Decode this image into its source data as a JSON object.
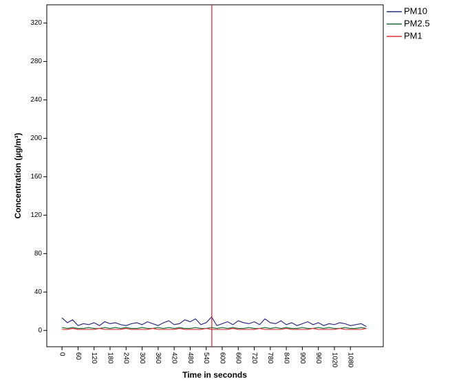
{
  "chart_data": {
    "type": "line",
    "xlabel": "Time in seconds",
    "ylabel": "Concentration (µg/m³)",
    "x": [
      0,
      20,
      40,
      60,
      80,
      100,
      120,
      140,
      160,
      180,
      200,
      220,
      240,
      260,
      280,
      300,
      320,
      340,
      360,
      380,
      400,
      420,
      440,
      460,
      480,
      500,
      520,
      540,
      560,
      580,
      600,
      620,
      640,
      660,
      680,
      700,
      720,
      740,
      760,
      780,
      800,
      820,
      840,
      860,
      880,
      900,
      920,
      940,
      960,
      980,
      1000,
      1020,
      1040,
      1060,
      1080,
      1100,
      1120,
      1140
    ],
    "series": [
      {
        "name": "PM10",
        "color": "#2b2f7f",
        "values": [
          13,
          8,
          11,
          5,
          7,
          6,
          8,
          5,
          9,
          7,
          8,
          6,
          5,
          7,
          8,
          6,
          9,
          7,
          5,
          8,
          10,
          6,
          7,
          11,
          9,
          12,
          6,
          8,
          14,
          5,
          7,
          9,
          6,
          10,
          8,
          7,
          9,
          6,
          12,
          8,
          7,
          10,
          6,
          8,
          5,
          7,
          9,
          6,
          8,
          5,
          7,
          6,
          8,
          7,
          5,
          6,
          7,
          4
        ]
      },
      {
        "name": "PM2.5",
        "color": "#1f6b3a",
        "values": [
          3,
          2,
          3,
          2,
          2,
          3,
          2,
          2,
          3,
          2,
          3,
          2,
          3,
          2,
          2,
          3,
          2,
          2,
          3,
          2,
          3,
          2,
          3,
          2,
          2,
          3,
          2,
          2,
          3,
          2,
          3,
          2,
          3,
          2,
          2,
          3,
          2,
          2,
          3,
          2,
          3,
          2,
          3,
          2,
          2,
          3,
          2,
          2,
          3,
          2,
          3,
          2,
          2,
          3,
          2,
          2,
          3,
          2
        ]
      },
      {
        "name": "PM1",
        "color": "#e0303a",
        "values": [
          1,
          1,
          2,
          1,
          1,
          1,
          1,
          2,
          1,
          1,
          1,
          1,
          2,
          1,
          1,
          1,
          1,
          2,
          1,
          1,
          1,
          1,
          2,
          1,
          1,
          1,
          1,
          2,
          1,
          1,
          1,
          1,
          2,
          1,
          1,
          1,
          1,
          2,
          1,
          1,
          1,
          1,
          2,
          1,
          1,
          1,
          1,
          2,
          1,
          1,
          1,
          1,
          2,
          1,
          1,
          1,
          1,
          2
        ]
      }
    ],
    "reference_line": {
      "x": 561,
      "color": "#d02030"
    },
    "xlim": [
      -57,
      1203
    ],
    "xticks": [
      0,
      60,
      120,
      180,
      240,
      300,
      360,
      420,
      480,
      540,
      600,
      660,
      720,
      780,
      840,
      900,
      960,
      1020,
      1080
    ],
    "ylim": [
      -17,
      339
    ],
    "yticks": [
      0,
      40,
      80,
      120,
      160,
      200,
      240,
      280,
      320
    ],
    "legend": "outside-top-right"
  }
}
